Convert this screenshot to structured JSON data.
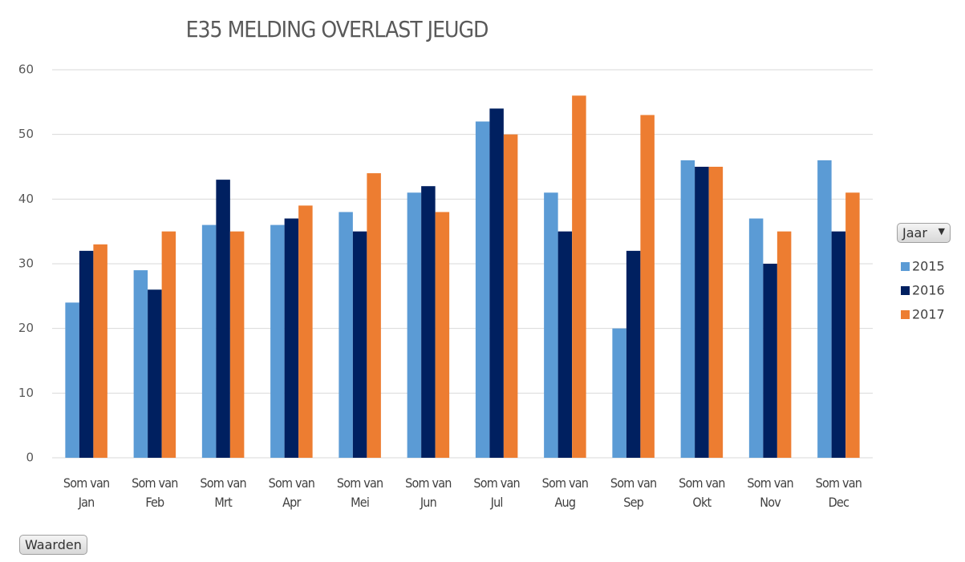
{
  "chart_data": {
    "type": "bar",
    "title": "E35 MELDING OVERLAST JEUGD",
    "legend_title": "Jaar",
    "values_button": "Waarden",
    "categories": [
      "Som van Jan",
      "Som van Feb",
      "Som van Mrt",
      "Som van Apr",
      "Som van Mei",
      "Som van Jun",
      "Som van Jul",
      "Som van Aug",
      "Som van Sep",
      "Som van Okt",
      "Som van Nov",
      "Som van Dec"
    ],
    "series": [
      {
        "name": "2015",
        "color": "#5b9bd5",
        "values": [
          24,
          29,
          36,
          36,
          38,
          41,
          52,
          41,
          20,
          46,
          37,
          46
        ]
      },
      {
        "name": "2016",
        "color": "#002060",
        "values": [
          32,
          26,
          43,
          37,
          35,
          42,
          54,
          35,
          32,
          45,
          30,
          35
        ]
      },
      {
        "name": "2017",
        "color": "#ed7d31",
        "values": [
          33,
          35,
          35,
          39,
          44,
          38,
          50,
          56,
          53,
          45,
          35,
          41
        ]
      }
    ],
    "ylim": [
      0,
      60
    ],
    "yticks": [
      0,
      10,
      20,
      30,
      40,
      50,
      60
    ],
    "grid": true,
    "legend": "right"
  }
}
